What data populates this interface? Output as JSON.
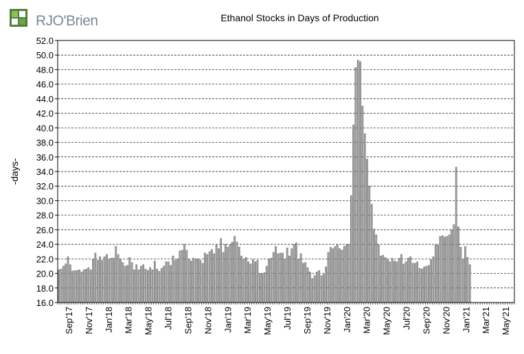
{
  "brand": {
    "logo_text": "RJO'Brien"
  },
  "chart_data": {
    "type": "bar",
    "title": "Ethanol Stocks in Days of Production",
    "xlabel": "",
    "ylabel": "-days-",
    "ylim": [
      16.0,
      52.0
    ],
    "yticks": [
      "16.0",
      "18.0",
      "20.0",
      "22.0",
      "24.0",
      "26.0",
      "28.0",
      "30.0",
      "32.0",
      "34.0",
      "36.0",
      "38.0",
      "40.0",
      "42.0",
      "44.0",
      "46.0",
      "48.0",
      "50.0",
      "52.0"
    ],
    "xticks": [
      "Sep'17",
      "Nov'17",
      "Jan'18",
      "Mar'18",
      "May'18",
      "Jul'18",
      "Sep'18",
      "Nov'18",
      "Jan'19",
      "Mar'19",
      "May'19",
      "Jul'19",
      "Sep'19",
      "Nov'19",
      "Jan'20",
      "Mar'20",
      "May'20",
      "Jul'20",
      "Sep'20",
      "Nov'20",
      "Jan'21",
      "Mar'21",
      "May'21"
    ],
    "grid": "horizontal dashed",
    "bar_color": "#a6a6a6",
    "values": [
      20.5,
      20.6,
      21.0,
      21.3,
      22.3,
      21.2,
      20.3,
      20.4,
      20.4,
      20.5,
      20.2,
      20.5,
      20.6,
      20.8,
      20.5,
      21.9,
      22.8,
      21.8,
      22.3,
      21.8,
      22.3,
      22.6,
      22.0,
      22.1,
      22.1,
      23.7,
      22.6,
      22.0,
      21.5,
      21.0,
      21.1,
      22.2,
      21.5,
      20.5,
      21.2,
      20.5,
      21.0,
      21.2,
      20.6,
      20.4,
      20.8,
      20.5,
      21.7,
      20.6,
      20.3,
      20.7,
      21.0,
      21.6,
      21.6,
      21.1,
      22.4,
      21.8,
      22.0,
      23.1,
      23.2,
      24.0,
      23.2,
      22.0,
      21.7,
      22.1,
      22.0,
      22.0,
      21.8,
      21.4,
      22.8,
      22.6,
      23.0,
      23.3,
      22.7,
      23.9,
      23.4,
      24.8,
      22.9,
      24.0,
      23.6,
      23.9,
      24.3,
      25.1,
      24.3,
      23.6,
      22.4,
      22.0,
      22.2,
      21.6,
      21.3,
      21.9,
      21.6,
      21.8,
      20.0,
      20.0,
      20.1,
      21.0,
      22.0,
      22.1,
      22.9,
      23.7,
      22.7,
      22.8,
      22.8,
      22.0,
      23.5,
      22.4,
      23.4,
      24.0,
      24.2,
      21.9,
      22.7,
      21.4,
      21.5,
      20.8,
      20.2,
      19.3,
      19.7,
      20.2,
      20.4,
      19.7,
      19.9,
      20.9,
      22.9,
      23.6,
      23.4,
      23.7,
      23.9,
      23.4,
      23.2,
      23.7,
      23.9,
      24.0,
      30.7,
      40.4,
      48.3,
      49.3,
      49.1,
      43.0,
      39.2,
      35.7,
      32.0,
      29.5,
      26.1,
      25.3,
      23.9,
      22.4,
      22.5,
      22.2,
      22.0,
      21.6,
      22.1,
      21.7,
      21.6,
      22.1,
      22.6,
      21.3,
      21.6,
      22.1,
      22.3,
      21.4,
      21.4,
      21.6,
      20.7,
      20.6,
      20.9,
      21.0,
      21.1,
      21.9,
      22.3,
      23.9,
      23.9,
      25.1,
      25.2,
      25.0,
      25.1,
      25.3,
      26.0,
      26.7,
      34.6,
      26.4,
      23.6,
      22.0,
      23.7,
      22.2,
      21.2
    ]
  }
}
